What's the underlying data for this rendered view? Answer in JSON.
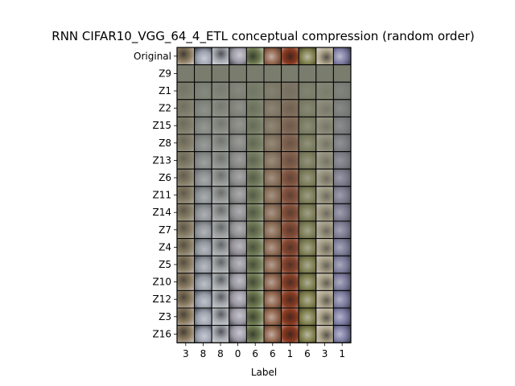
{
  "chart_data": {
    "type": "heatmap",
    "title": "RNN CIFAR10_VGG_64_4_ETL conceptual compression (random order)",
    "xlabel": "Label",
    "ylabel": "",
    "x_tick_labels": [
      "3",
      "8",
      "8",
      "0",
      "6",
      "6",
      "1",
      "6",
      "3",
      "1"
    ],
    "y_tick_labels": [
      "Original",
      "Z9",
      "Z1",
      "Z2",
      "Z15",
      "Z8",
      "Z13",
      "Z6",
      "Z11",
      "Z14",
      "Z7",
      "Z4",
      "Z5",
      "Z10",
      "Z12",
      "Z3",
      "Z16"
    ],
    "grid": false,
    "column_base_colors": [
      "#8a7a5e",
      "#9aa0ad",
      "#a6aab0",
      "#9d9aa6",
      "#6e7a4f",
      "#8f6248",
      "#8a3a20",
      "#7a7a46",
      "#b2a88e",
      "#7a7aa0"
    ],
    "row_detail_levels": [
      1.0,
      0.0,
      0.12,
      0.22,
      0.28,
      0.34,
      0.38,
      0.5,
      0.54,
      0.58,
      0.62,
      0.7,
      0.74,
      0.8,
      0.85,
      0.9,
      0.96
    ]
  }
}
